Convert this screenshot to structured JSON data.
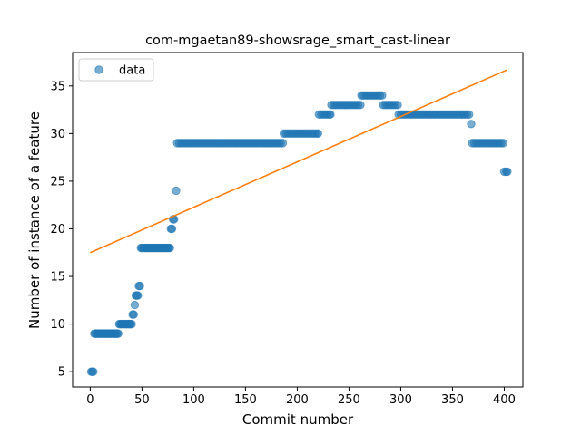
{
  "chart_data": {
    "type": "scatter",
    "title": "com-mgaetan89-showsrage_smart_cast-linear",
    "xlabel": "Commit number",
    "ylabel": "Number of instance of a feature",
    "xlim": [
      -17,
      418
    ],
    "ylim": [
      3.4,
      38.5
    ],
    "xticks": [
      0,
      50,
      100,
      150,
      200,
      250,
      300,
      350,
      400
    ],
    "yticks": [
      5,
      10,
      15,
      20,
      25,
      30,
      35
    ],
    "legend": {
      "position": "top-left",
      "entries": [
        "data"
      ]
    },
    "grid": false,
    "colors": {
      "data": "#1f77b4",
      "fit": "#ff7f0e"
    },
    "series": [
      {
        "name": "data",
        "kind": "scatter",
        "points": [
          [
            1,
            5
          ],
          [
            2,
            5
          ],
          [
            3,
            5
          ],
          [
            4,
            9
          ],
          [
            5,
            9
          ],
          [
            6,
            9
          ],
          [
            7,
            9
          ],
          [
            8,
            9
          ],
          [
            9,
            9
          ],
          [
            10,
            9
          ],
          [
            11,
            9
          ],
          [
            12,
            9
          ],
          [
            13,
            9
          ],
          [
            14,
            9
          ],
          [
            15,
            9
          ],
          [
            16,
            9
          ],
          [
            17,
            9
          ],
          [
            18,
            9
          ],
          [
            19,
            9
          ],
          [
            20,
            9
          ],
          [
            21,
            9
          ],
          [
            22,
            9
          ],
          [
            23,
            9
          ],
          [
            24,
            9
          ],
          [
            25,
            9
          ],
          [
            26,
            9
          ],
          [
            27,
            9
          ],
          [
            28,
            10
          ],
          [
            29,
            10
          ],
          [
            30,
            10
          ],
          [
            31,
            10
          ],
          [
            32,
            10
          ],
          [
            33,
            10
          ],
          [
            34,
            10
          ],
          [
            35,
            10
          ],
          [
            36,
            10
          ],
          [
            37,
            10
          ],
          [
            38,
            10
          ],
          [
            39,
            10
          ],
          [
            40,
            10
          ],
          [
            41,
            11
          ],
          [
            42,
            11
          ],
          [
            43,
            12
          ],
          [
            44,
            13
          ],
          [
            45,
            13
          ],
          [
            46,
            13
          ],
          [
            47,
            14
          ],
          [
            48,
            14
          ],
          [
            49,
            18
          ],
          [
            50,
            18
          ],
          [
            51,
            18
          ],
          [
            52,
            18
          ],
          [
            53,
            18
          ],
          [
            54,
            18
          ],
          [
            55,
            18
          ],
          [
            56,
            18
          ],
          [
            57,
            18
          ],
          [
            58,
            18
          ],
          [
            59,
            18
          ],
          [
            60,
            18
          ],
          [
            61,
            18
          ],
          [
            62,
            18
          ],
          [
            63,
            18
          ],
          [
            64,
            18
          ],
          [
            65,
            18
          ],
          [
            66,
            18
          ],
          [
            67,
            18
          ],
          [
            68,
            18
          ],
          [
            69,
            18
          ],
          [
            70,
            18
          ],
          [
            71,
            18
          ],
          [
            72,
            18
          ],
          [
            73,
            18
          ],
          [
            74,
            18
          ],
          [
            75,
            18
          ],
          [
            76,
            18
          ],
          [
            77,
            18
          ],
          [
            78,
            20
          ],
          [
            79,
            20
          ],
          [
            80,
            21
          ],
          [
            81,
            21
          ],
          [
            83,
            24
          ],
          [
            84,
            29
          ],
          [
            86,
            29
          ],
          [
            88,
            29
          ],
          [
            90,
            29
          ],
          [
            92,
            29
          ],
          [
            94,
            29
          ],
          [
            96,
            29
          ],
          [
            98,
            29
          ],
          [
            100,
            29
          ],
          [
            102,
            29
          ],
          [
            104,
            29
          ],
          [
            106,
            29
          ],
          [
            108,
            29
          ],
          [
            110,
            29
          ],
          [
            112,
            29
          ],
          [
            114,
            29
          ],
          [
            116,
            29
          ],
          [
            118,
            29
          ],
          [
            120,
            29
          ],
          [
            122,
            29
          ],
          [
            124,
            29
          ],
          [
            126,
            29
          ],
          [
            128,
            29
          ],
          [
            130,
            29
          ],
          [
            132,
            29
          ],
          [
            134,
            29
          ],
          [
            136,
            29
          ],
          [
            138,
            29
          ],
          [
            140,
            29
          ],
          [
            142,
            29
          ],
          [
            144,
            29
          ],
          [
            146,
            29
          ],
          [
            148,
            29
          ],
          [
            150,
            29
          ],
          [
            152,
            29
          ],
          [
            154,
            29
          ],
          [
            156,
            29
          ],
          [
            158,
            29
          ],
          [
            160,
            29
          ],
          [
            162,
            29
          ],
          [
            164,
            29
          ],
          [
            166,
            29
          ],
          [
            168,
            29
          ],
          [
            170,
            29
          ],
          [
            172,
            29
          ],
          [
            174,
            29
          ],
          [
            176,
            29
          ],
          [
            178,
            29
          ],
          [
            180,
            29
          ],
          [
            182,
            29
          ],
          [
            184,
            29
          ],
          [
            186,
            29
          ],
          [
            187,
            30
          ],
          [
            189,
            30
          ],
          [
            191,
            30
          ],
          [
            193,
            30
          ],
          [
            195,
            30
          ],
          [
            197,
            30
          ],
          [
            199,
            30
          ],
          [
            201,
            30
          ],
          [
            203,
            30
          ],
          [
            205,
            30
          ],
          [
            207,
            30
          ],
          [
            209,
            30
          ],
          [
            211,
            30
          ],
          [
            213,
            30
          ],
          [
            215,
            30
          ],
          [
            217,
            30
          ],
          [
            219,
            30
          ],
          [
            220,
            30
          ],
          [
            221,
            32
          ],
          [
            223,
            32
          ],
          [
            225,
            32
          ],
          [
            227,
            32
          ],
          [
            229,
            32
          ],
          [
            231,
            32
          ],
          [
            232,
            32
          ],
          [
            233,
            33
          ],
          [
            235,
            33
          ],
          [
            237,
            33
          ],
          [
            239,
            33
          ],
          [
            241,
            33
          ],
          [
            243,
            33
          ],
          [
            245,
            33
          ],
          [
            247,
            33
          ],
          [
            249,
            33
          ],
          [
            251,
            33
          ],
          [
            253,
            33
          ],
          [
            255,
            33
          ],
          [
            257,
            33
          ],
          [
            259,
            33
          ],
          [
            261,
            33
          ],
          [
            262,
            34
          ],
          [
            264,
            34
          ],
          [
            266,
            34
          ],
          [
            268,
            34
          ],
          [
            270,
            34
          ],
          [
            272,
            34
          ],
          [
            274,
            34
          ],
          [
            276,
            34
          ],
          [
            278,
            34
          ],
          [
            280,
            34
          ],
          [
            282,
            34
          ],
          [
            283,
            33
          ],
          [
            285,
            33
          ],
          [
            287,
            33
          ],
          [
            289,
            33
          ],
          [
            291,
            33
          ],
          [
            293,
            33
          ],
          [
            295,
            33
          ],
          [
            297,
            33
          ],
          [
            298,
            32
          ],
          [
            300,
            32
          ],
          [
            302,
            32
          ],
          [
            304,
            32
          ],
          [
            306,
            32
          ],
          [
            308,
            32
          ],
          [
            310,
            32
          ],
          [
            312,
            32
          ],
          [
            314,
            32
          ],
          [
            316,
            32
          ],
          [
            318,
            32
          ],
          [
            320,
            32
          ],
          [
            322,
            32
          ],
          [
            324,
            32
          ],
          [
            326,
            32
          ],
          [
            328,
            32
          ],
          [
            330,
            32
          ],
          [
            332,
            32
          ],
          [
            334,
            32
          ],
          [
            336,
            32
          ],
          [
            338,
            32
          ],
          [
            340,
            32
          ],
          [
            342,
            32
          ],
          [
            344,
            32
          ],
          [
            346,
            32
          ],
          [
            348,
            32
          ],
          [
            350,
            32
          ],
          [
            352,
            32
          ],
          [
            354,
            32
          ],
          [
            356,
            32
          ],
          [
            358,
            32
          ],
          [
            360,
            32
          ],
          [
            362,
            32
          ],
          [
            364,
            32
          ],
          [
            366,
            32
          ],
          [
            368,
            31
          ],
          [
            369,
            29
          ],
          [
            371,
            29
          ],
          [
            373,
            29
          ],
          [
            375,
            29
          ],
          [
            377,
            29
          ],
          [
            379,
            29
          ],
          [
            381,
            29
          ],
          [
            383,
            29
          ],
          [
            385,
            29
          ],
          [
            387,
            29
          ],
          [
            389,
            29
          ],
          [
            391,
            29
          ],
          [
            393,
            29
          ],
          [
            395,
            29
          ],
          [
            397,
            29
          ],
          [
            399,
            29
          ],
          [
            400,
            26
          ],
          [
            402,
            26
          ],
          [
            403,
            26
          ]
        ]
      },
      {
        "name": "",
        "kind": "line",
        "points": [
          [
            0,
            17.5
          ],
          [
            403,
            36.7
          ]
        ]
      }
    ]
  }
}
